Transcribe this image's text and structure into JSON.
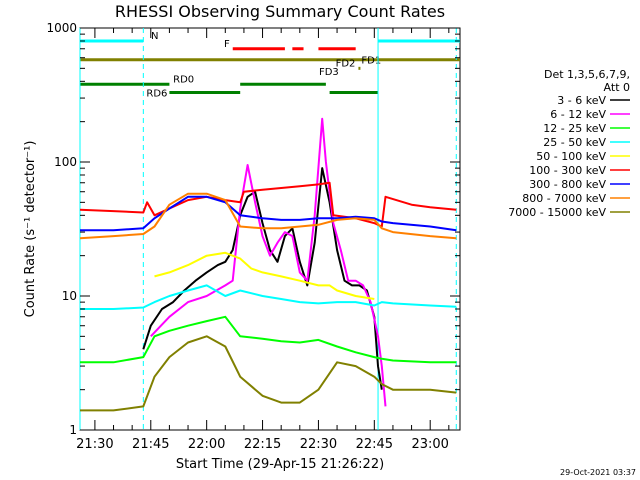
{
  "chart_data": {
    "type": "line",
    "title": "RHESSI Observing Summary Count Rates",
    "xlabel": "Start Time (29-Apr-15 21:26:22)",
    "ylabel": "Count Rate (s⁻¹ detector⁻¹)",
    "y_scale": "log",
    "ylim": [
      1,
      1000
    ],
    "xlim": [
      "21:26",
      "23:08"
    ],
    "x_ticks": [
      "21:30",
      "21:45",
      "22:00",
      "22:15",
      "22:30",
      "22:45",
      "23:00"
    ],
    "y_ticks": [
      "1",
      "10",
      "100",
      "1000"
    ],
    "timestamp": "29-Oct-2021 03:37",
    "legend": {
      "placement": "right",
      "header": [
        "Det 1,3,5,6,7,9,",
        "Att 0"
      ],
      "entries": [
        {
          "label": "3 - 6 keV",
          "color": "#000000"
        },
        {
          "label": "6 - 12 keV",
          "color": "#ff00ff"
        },
        {
          "label": "12 - 25 keV",
          "color": "#00ff00"
        },
        {
          "label": "25 - 50 keV",
          "color": "#00ffff"
        },
        {
          "label": "50 - 100 keV",
          "color": "#ffff00"
        },
        {
          "label": "100 - 300 keV",
          "color": "#ff0000"
        },
        {
          "label": "300 - 800 keV",
          "color": "#0000ff"
        },
        {
          "label": "800 - 7000 keV",
          "color": "#ff8000"
        },
        {
          "label": "7000 - 15000 keV",
          "color": "#808000"
        }
      ]
    },
    "flag_bars": [
      {
        "label": "N",
        "color": "#00ffff",
        "segments": [
          [
            "21:26",
            "21:43"
          ],
          [
            "22:46",
            "23:08"
          ]
        ],
        "level": 800
      },
      {
        "label": "F",
        "color": "#ff0000",
        "segments": [
          [
            "22:07",
            "22:21"
          ],
          [
            "22:23",
            "22:26"
          ],
          [
            "22:30",
            "22:40"
          ]
        ],
        "level": 700
      },
      {
        "label": "FD1",
        "color": "#808000",
        "segments": [
          [
            "21:26",
            "23:08"
          ]
        ],
        "level": 580
      },
      {
        "label": "FD2",
        "color": "#808000",
        "segments": [
          [
            "22:41",
            "22:41"
          ]
        ],
        "level": 500
      },
      {
        "label": "FD3",
        "color": "#808000",
        "segments": [],
        "level": 430
      },
      {
        "label": "RD0",
        "color": "#008000",
        "segments": [
          [
            "21:26",
            "21:50"
          ],
          [
            "22:09",
            "22:32"
          ]
        ],
        "level": 380
      },
      {
        "label": "RD6",
        "color": "#008000",
        "segments": [
          [
            "21:50",
            "22:09"
          ],
          [
            "22:33",
            "22:46"
          ]
        ],
        "level": 330
      }
    ],
    "vertical_markers": [
      {
        "time": "21:26",
        "color": "#00ffff",
        "style": "solid"
      },
      {
        "time": "21:43",
        "color": "#00ffff",
        "style": "dashed"
      },
      {
        "time": "22:46",
        "color": "#00ffff",
        "style": "solid"
      },
      {
        "time": "23:07",
        "color": "#00ffff",
        "style": "dashed"
      }
    ],
    "series": [
      {
        "name": "3 - 6 keV",
        "color": "#000000",
        "x": [
          "21:43",
          "21:45",
          "21:48",
          "21:51",
          "21:54",
          "21:57",
          "22:00",
          "22:03",
          "22:05",
          "22:07",
          "22:09",
          "22:11",
          "22:13",
          "22:15",
          "22:17",
          "22:19",
          "22:21",
          "22:23",
          "22:25",
          "22:27",
          "22:29",
          "22:31",
          "22:33",
          "22:35",
          "22:37",
          "22:39",
          "22:41",
          "22:43",
          "22:45",
          "22:46",
          "22:47"
        ],
        "y": [
          4,
          6,
          8,
          9,
          11,
          13,
          15,
          17,
          18,
          22,
          40,
          55,
          60,
          35,
          22,
          18,
          28,
          32,
          18,
          12,
          25,
          90,
          50,
          22,
          13,
          12,
          12,
          11,
          7,
          3,
          2
        ]
      },
      {
        "name": "6 - 12 keV",
        "color": "#ff00ff",
        "x": [
          "21:45",
          "21:50",
          "21:55",
          "22:00",
          "22:05",
          "22:07",
          "22:09",
          "22:11",
          "22:13",
          "22:15",
          "22:17",
          "22:19",
          "22:21",
          "22:23",
          "22:25",
          "22:27",
          "22:29",
          "22:31",
          "22:32",
          "22:34",
          "22:36",
          "22:38",
          "22:40",
          "22:42",
          "22:44",
          "22:46",
          "22:47",
          "22:48"
        ],
        "y": [
          5,
          7,
          9,
          10,
          12,
          13,
          45,
          95,
          50,
          28,
          20,
          25,
          30,
          28,
          15,
          13,
          40,
          210,
          100,
          35,
          22,
          13,
          13,
          12,
          9,
          5,
          3,
          1.5
        ]
      },
      {
        "name": "12 - 25 keV",
        "color": "#00ff00",
        "x": [
          "21:26",
          "21:35",
          "21:43",
          "21:46",
          "21:50",
          "21:55",
          "22:00",
          "22:05",
          "22:09",
          "22:15",
          "22:20",
          "22:25",
          "22:30",
          "22:35",
          "22:40",
          "22:45",
          "22:47",
          "22:50",
          "23:00",
          "23:07"
        ],
        "y": [
          3.2,
          3.2,
          3.5,
          5,
          5.5,
          6,
          6.5,
          7,
          5,
          4.8,
          4.6,
          4.5,
          4.7,
          4.2,
          3.8,
          3.5,
          3.4,
          3.3,
          3.2,
          3.2
        ]
      },
      {
        "name": "25 - 50 keV",
        "color": "#00ffff",
        "x": [
          "21:26",
          "21:35",
          "21:43",
          "21:46",
          "21:50",
          "21:55",
          "22:00",
          "22:05",
          "22:09",
          "22:15",
          "22:20",
          "22:25",
          "22:30",
          "22:35",
          "22:40",
          "22:45",
          "22:47",
          "22:50",
          "23:00",
          "23:07"
        ],
        "y": [
          8,
          8,
          8.2,
          9,
          10,
          11,
          12,
          10,
          11,
          10,
          9.5,
          9,
          8.8,
          9,
          9,
          8.5,
          9,
          8.8,
          8.5,
          8.3
        ]
      },
      {
        "name": "50 - 100 keV",
        "color": "#ffff00",
        "x": [
          "21:46",
          "21:50",
          "21:55",
          "22:00",
          "22:05",
          "22:09",
          "22:12",
          "22:15",
          "22:20",
          "22:25",
          "22:30",
          "22:33",
          "22:35",
          "22:40",
          "22:45"
        ],
        "y": [
          14,
          15,
          17,
          20,
          21,
          19,
          16,
          15,
          14,
          13,
          12,
          12,
          11,
          10,
          9.5
        ]
      },
      {
        "name": "100 - 300 keV",
        "color": "#ff0000",
        "x": [
          "21:26",
          "21:35",
          "21:43",
          "21:44",
          "21:46",
          "21:50",
          "21:55",
          "22:00",
          "22:05",
          "22:09",
          "22:10",
          "22:15",
          "22:20",
          "22:25",
          "22:30",
          "22:33",
          "22:34",
          "22:40",
          "22:45",
          "22:47",
          "22:48",
          "22:55",
          "23:00",
          "23:07"
        ],
        "y": [
          44,
          43,
          42,
          50,
          40,
          45,
          52,
          55,
          52,
          50,
          60,
          62,
          64,
          66,
          68,
          70,
          40,
          38,
          35,
          33,
          55,
          48,
          46,
          44
        ]
      },
      {
        "name": "300 - 800 keV",
        "color": "#0000ff",
        "x": [
          "21:26",
          "21:35",
          "21:43",
          "21:46",
          "21:50",
          "21:55",
          "22:00",
          "22:05",
          "22:09",
          "22:15",
          "22:20",
          "22:25",
          "22:30",
          "22:35",
          "22:40",
          "22:45",
          "22:47",
          "22:50",
          "23:00",
          "23:07"
        ],
        "y": [
          31,
          31,
          32,
          38,
          45,
          55,
          55,
          50,
          40,
          38,
          37,
          37,
          38,
          38,
          39,
          38,
          36,
          35,
          33,
          31
        ]
      },
      {
        "name": "800 - 7000 keV",
        "color": "#ff8000",
        "x": [
          "21:26",
          "21:35",
          "21:43",
          "21:46",
          "21:50",
          "21:55",
          "22:00",
          "22:05",
          "22:09",
          "22:15",
          "22:20",
          "22:25",
          "22:30",
          "22:35",
          "22:40",
          "22:45",
          "22:47",
          "22:50",
          "23:00",
          "23:07"
        ],
        "y": [
          27,
          28,
          29,
          33,
          48,
          58,
          58,
          52,
          33,
          32,
          32,
          33,
          34,
          37,
          38,
          37,
          32,
          30,
          28,
          27
        ]
      },
      {
        "name": "7000 - 15000 keV",
        "color": "#808000",
        "x": [
          "21:26",
          "21:35",
          "21:43",
          "21:46",
          "21:50",
          "21:55",
          "22:00",
          "22:05",
          "22:09",
          "22:15",
          "22:20",
          "22:25",
          "22:30",
          "22:35",
          "22:40",
          "22:45",
          "22:47",
          "22:50",
          "23:00",
          "23:07"
        ],
        "y": [
          1.4,
          1.4,
          1.5,
          2.5,
          3.5,
          4.5,
          5,
          4.2,
          2.5,
          1.8,
          1.6,
          1.6,
          2,
          3.2,
          3,
          2.5,
          2.2,
          2,
          2,
          1.9
        ]
      }
    ]
  }
}
